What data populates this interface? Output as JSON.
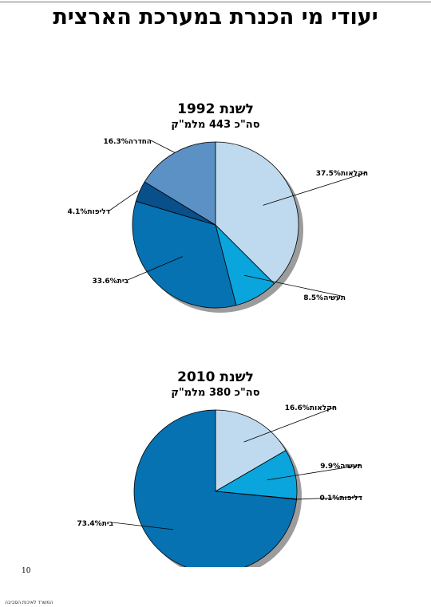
{
  "page_title": "יעודי מי הכנרת במערכת הארצית",
  "page_number": "10",
  "footer_text": "המשרד לאיכות הסביבה",
  "chart_data": [
    {
      "type": "pie",
      "title": "לשנת 1992",
      "subtitle": "סה\"כ 443 מלמ\"ק",
      "start_angle_deg": 0,
      "direction": "clockwise",
      "slices": [
        {
          "label": "חקלאות",
          "value_label": "37.5%",
          "value": 37.5,
          "color": "#bfdaee"
        },
        {
          "label": "תעשיה",
          "value_label": "8.5%",
          "value": 8.5,
          "color": "#0aa5dd"
        },
        {
          "label": "בית",
          "value_label": "33.6%",
          "value": 33.6,
          "color": "#0672b2"
        },
        {
          "label": "דליפות",
          "value_label": "4.1%",
          "value": 4.1,
          "color": "#094f8a"
        },
        {
          "label": "החדרה",
          "value_label": "16.3%",
          "value": 16.3,
          "color": "#5b91c4"
        }
      ]
    },
    {
      "type": "pie",
      "title": "לשנת 2010",
      "subtitle": "סה\"כ 380 מלמ\"ק",
      "start_angle_deg": 0,
      "direction": "clockwise",
      "slices": [
        {
          "label": "חקלאות",
          "value_label": "16.6%",
          "value": 16.6,
          "color": "#bfdaee"
        },
        {
          "label": "תעשיה",
          "value_label": "9.9%",
          "value": 9.9,
          "color": "#0aa5dd"
        },
        {
          "label": "דליפות",
          "value_label": "0.1%",
          "value": 0.1,
          "color": "#094f8a"
        },
        {
          "label": "בית",
          "value_label": "73.4%",
          "value": 73.4,
          "color": "#0672b2"
        }
      ]
    }
  ]
}
